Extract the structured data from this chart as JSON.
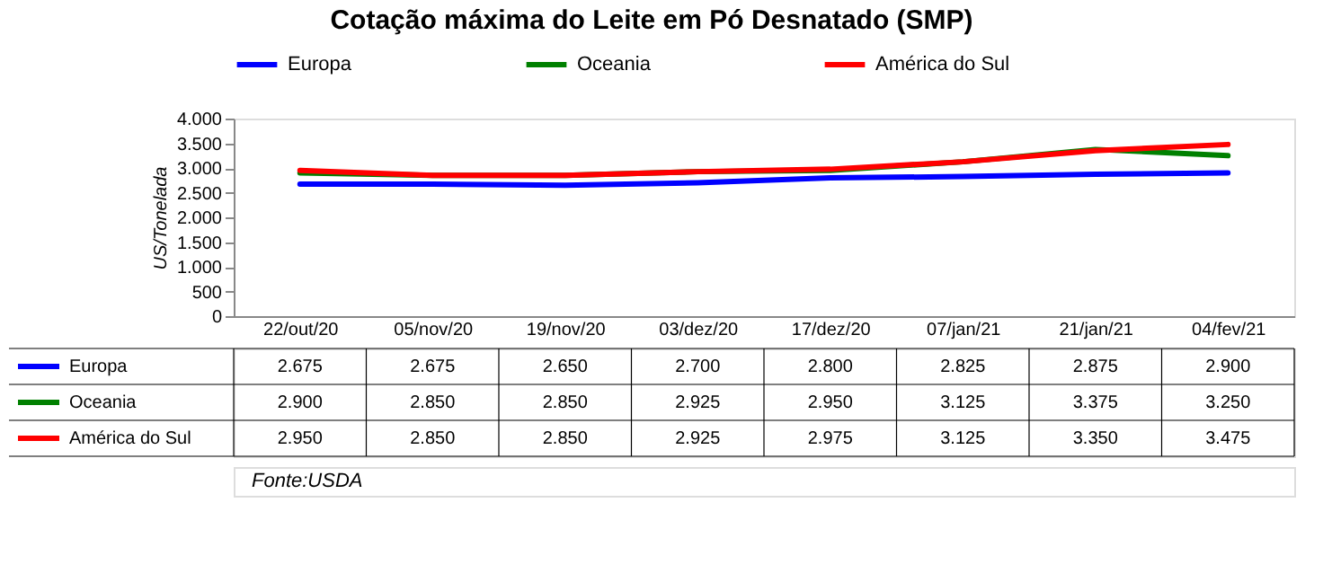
{
  "chart_data": {
    "type": "line",
    "title": "Cotação máxima do Leite em Pó Desnatado (SMP)",
    "ylabel": "US/Tonelada",
    "categories": [
      "22/out/20",
      "05/nov/20",
      "19/nov/20",
      "03/dez/20",
      "17/dez/20",
      "07/jan/21",
      "21/jan/21",
      "04/fev/21"
    ],
    "series": [
      {
        "name": "Europa",
        "color": "#0000ff",
        "values": [
          2675,
          2675,
          2650,
          2700,
          2800,
          2825,
          2875,
          2900
        ],
        "value_labels": [
          "2.675",
          "2.675",
          "2.650",
          "2.700",
          "2.800",
          "2.825",
          "2.875",
          "2.900"
        ]
      },
      {
        "name": "Oceania",
        "color": "#008000",
        "values": [
          2900,
          2850,
          2850,
          2925,
          2950,
          3125,
          3375,
          3250
        ],
        "value_labels": [
          "2.900",
          "2.850",
          "2.850",
          "2.925",
          "2.950",
          "3.125",
          "3.375",
          "3.250"
        ]
      },
      {
        "name": "América do Sul",
        "color": "#ff0000",
        "values": [
          2950,
          2850,
          2850,
          2925,
          2975,
          3125,
          3350,
          3475
        ],
        "value_labels": [
          "2.950",
          "2.850",
          "2.850",
          "2.925",
          "2.975",
          "3.125",
          "3.350",
          "3.475"
        ]
      }
    ],
    "ylim": [
      0,
      4000
    ],
    "yticks": [
      0,
      {
        "value": 500,
        "label": "500"
      },
      {
        "value": 1000,
        "label": "1.000"
      },
      {
        "value": 1500,
        "label": "1.500"
      },
      {
        "value": 2000,
        "label": "2.000"
      },
      {
        "value": 2500,
        "label": "2.500"
      },
      {
        "value": 3000,
        "label": "3.000"
      },
      {
        "value": 3500,
        "label": "3.500"
      },
      {
        "value": 4000,
        "label": "4.000"
      }
    ],
    "grid": false,
    "legend": "top",
    "line_style": "solid",
    "annotations": [
      "Fonte:USDA"
    ]
  }
}
